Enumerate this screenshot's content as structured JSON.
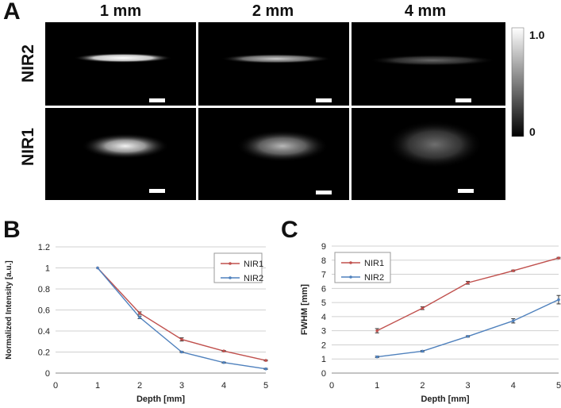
{
  "panel_labels": {
    "a": "A",
    "b": "B",
    "c": "C"
  },
  "panel_a": {
    "columns": [
      "1 mm",
      "2 mm",
      "4 mm"
    ],
    "rows": [
      "NIR2",
      "NIR1"
    ],
    "colorbar": {
      "max_label": "1.0",
      "min_label": "0"
    }
  },
  "chart_data": [
    {
      "type": "line",
      "xlabel": "Depth [mm]",
      "ylabel": "Normalized Intensity [a.u.]",
      "xlim": [
        0,
        5
      ],
      "ylim": [
        0,
        1.2
      ],
      "x_ticks": [
        "0",
        "1",
        "2",
        "3",
        "4",
        "5"
      ],
      "y_ticks": [
        "0",
        "0.2",
        "0.4",
        "0.6",
        "0.8",
        "1",
        "1.2"
      ],
      "x": [
        1,
        2,
        3,
        4,
        5
      ],
      "series": [
        {
          "name": "NIR1",
          "color": "#c0504d",
          "values": [
            1.0,
            0.57,
            0.32,
            0.21,
            0.12
          ],
          "errors": [
            0,
            0.012,
            0.015,
            0.005,
            0.005
          ]
        },
        {
          "name": "NIR2",
          "color": "#4f81bd",
          "values": [
            1.0,
            0.53,
            0.2,
            0.1,
            0.04
          ],
          "errors": [
            0,
            0.012,
            0.005,
            0.005,
            0.005
          ]
        }
      ],
      "grid": true,
      "legend": "top-right"
    },
    {
      "type": "line",
      "xlabel": "Depth [mm]",
      "ylabel": "FWHM [mm]",
      "xlim": [
        0,
        5
      ],
      "ylim": [
        0,
        9
      ],
      "x_ticks": [
        "0",
        "1",
        "2",
        "3",
        "4",
        "5"
      ],
      "y_ticks": [
        "0",
        "1",
        "2",
        "3",
        "4",
        "5",
        "6",
        "7",
        "8",
        "9"
      ],
      "x": [
        1,
        2,
        3,
        4,
        5
      ],
      "series": [
        {
          "name": "NIR1",
          "color": "#c0504d",
          "values": [
            3.0,
            4.6,
            6.4,
            7.25,
            8.15
          ],
          "errors": [
            0.15,
            0.1,
            0.1,
            0.05,
            0.05
          ]
        },
        {
          "name": "NIR2",
          "color": "#4f81bd",
          "values": [
            1.15,
            1.55,
            2.6,
            3.7,
            5.2
          ],
          "errors": [
            0.05,
            0.05,
            0.05,
            0.15,
            0.3
          ]
        }
      ],
      "grid": true,
      "legend": "top-left"
    }
  ]
}
